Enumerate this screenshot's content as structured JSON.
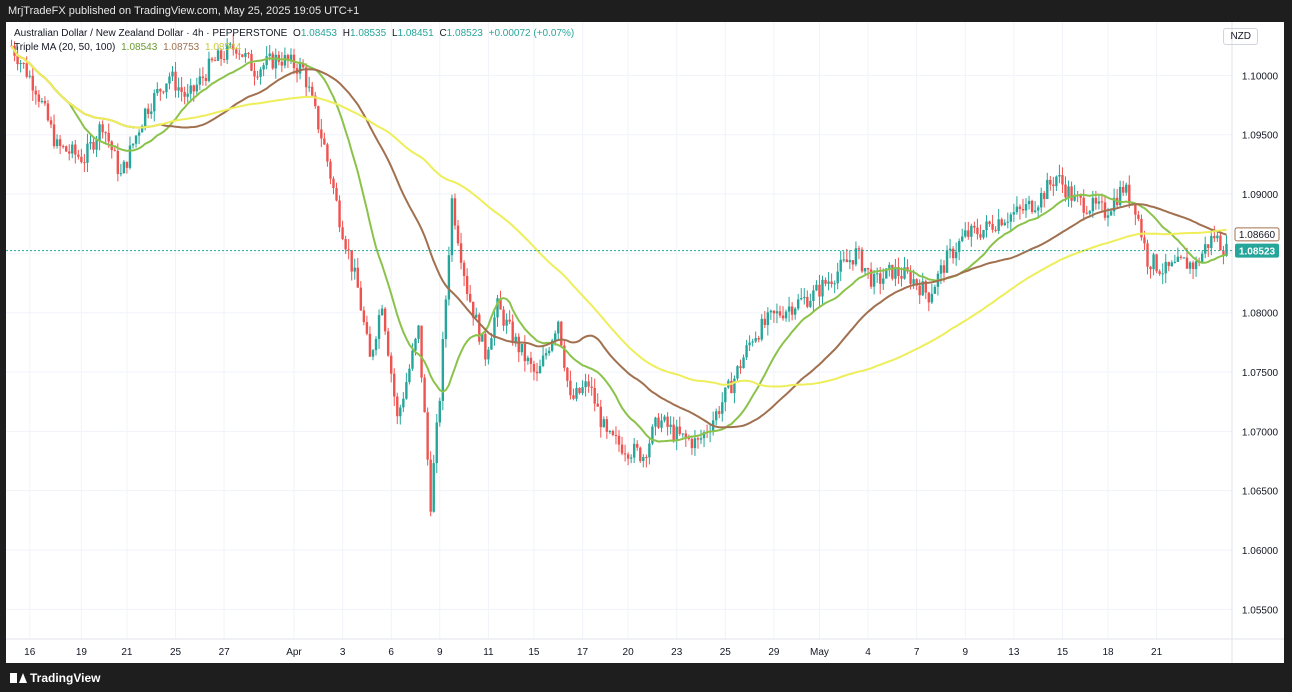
{
  "header": {
    "title": "MrjTradeFX published on TradingView.com, May 25, 2025 19:05 UTC+1"
  },
  "legend": {
    "symbol": "Australian Dollar / New Zealand Dollar · 4h · PEPPERSTONE",
    "o_label": "O",
    "o": "1.08453",
    "h_label": "H",
    "h": "1.08535",
    "l_label": "L",
    "l": "1.08451",
    "c_label": "C",
    "c": "1.08523",
    "change": "+0.00072 (+0.07%)",
    "ma_label": "Triple MA (20, 50, 100)",
    "ma20": "1.08543",
    "ma50": "1.08753",
    "ma100": "1.08544"
  },
  "currency_button": "NZD",
  "price_labels": {
    "ma_tag": "1.08660",
    "last_price": "1.08523"
  },
  "footer": {
    "logo_text": "TradingView"
  },
  "colors": {
    "up": "#26a69a",
    "down": "#ef5350",
    "ma20": "#8bc34a",
    "ma50": "#a1704f",
    "ma100": "#eeee5a",
    "last_price": "#26a69a"
  },
  "chart_data": {
    "type": "candlestick",
    "title": "Australian Dollar / New Zealand Dollar · 4h · PEPPERSTONE",
    "ylim": [
      1.0525,
      1.1045
    ],
    "y_ticks": [
      "1.10000",
      "1.09500",
      "1.09000",
      "1.08500",
      "1.08000",
      "1.07500",
      "1.07000",
      "1.06500",
      "1.06000",
      "1.05500"
    ],
    "x_ticks": [
      "16",
      "19",
      "21",
      "25",
      "27",
      "Apr",
      "3",
      "6",
      "9",
      "11",
      "15",
      "17",
      "20",
      "23",
      "25",
      "29",
      "May",
      "4",
      "7",
      "9",
      "13",
      "15",
      "18",
      "21"
    ],
    "last_price": 1.08523,
    "close_anchors": [
      [
        0,
        1.1025
      ],
      [
        8,
        1.099
      ],
      [
        15,
        1.094
      ],
      [
        24,
        1.093
      ],
      [
        30,
        1.096
      ],
      [
        36,
        1.0915
      ],
      [
        44,
        1.097
      ],
      [
        52,
        1.1
      ],
      [
        58,
        1.098
      ],
      [
        66,
        1.101
      ],
      [
        74,
        1.1025
      ],
      [
        80,
        1.1005
      ],
      [
        88,
        1.1015
      ],
      [
        96,
        1.1005
      ],
      [
        103,
        1.094
      ],
      [
        108,
        1.088
      ],
      [
        114,
        1.082
      ],
      [
        118,
        1.076
      ],
      [
        122,
        1.081
      ],
      [
        127,
        1.071
      ],
      [
        134,
        1.0785
      ],
      [
        138,
        1.064
      ],
      [
        141,
        1.073
      ],
      [
        145,
        1.0895
      ],
      [
        150,
        1.082
      ],
      [
        156,
        1.0765
      ],
      [
        160,
        1.0805
      ],
      [
        166,
        1.0775
      ],
      [
        173,
        1.0745
      ],
      [
        180,
        1.0795
      ],
      [
        184,
        1.0725
      ],
      [
        190,
        1.074
      ],
      [
        196,
        1.0695
      ],
      [
        203,
        1.0685
      ],
      [
        208,
        1.068
      ],
      [
        213,
        1.071
      ],
      [
        220,
        1.0695
      ],
      [
        226,
        1.069
      ],
      [
        232,
        1.0715
      ],
      [
        238,
        1.0745
      ],
      [
        244,
        1.078
      ],
      [
        250,
        1.0795
      ],
      [
        256,
        1.0805
      ],
      [
        264,
        1.0815
      ],
      [
        272,
        1.0835
      ],
      [
        278,
        1.085
      ],
      [
        284,
        1.0825
      ],
      [
        290,
        1.0835
      ],
      [
        296,
        1.083
      ],
      [
        302,
        1.0815
      ],
      [
        308,
        1.0845
      ],
      [
        314,
        1.0865
      ],
      [
        320,
        1.087
      ],
      [
        326,
        1.088
      ],
      [
        332,
        1.0885
      ],
      [
        338,
        1.0895
      ],
      [
        344,
        1.0915
      ],
      [
        350,
        1.0895
      ],
      [
        355,
        1.089
      ],
      [
        360,
        1.0885
      ],
      [
        366,
        1.0905
      ],
      [
        370,
        1.089
      ],
      [
        374,
        1.0845
      ],
      [
        380,
        1.0835
      ],
      [
        386,
        1.0842
      ],
      [
        390,
        1.084
      ],
      [
        393,
        1.0855
      ],
      [
        396,
        1.0865
      ],
      [
        400,
        1.08523
      ]
    ],
    "ma_series": [
      {
        "name": "MA 20",
        "period": 20,
        "color": "#8bc34a"
      },
      {
        "name": "MA 50",
        "period": 50,
        "color": "#a1704f"
      },
      {
        "name": "MA 100",
        "period": 100,
        "color": "#eeee5a"
      }
    ]
  }
}
